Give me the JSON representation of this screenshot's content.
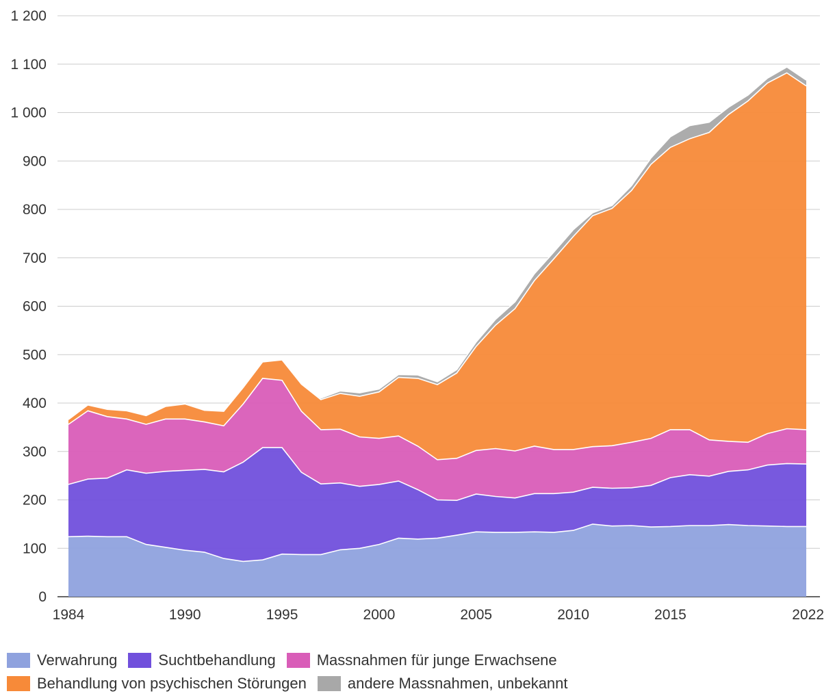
{
  "chart_data": {
    "type": "area",
    "stacked": true,
    "x": [
      1984,
      1985,
      1986,
      1987,
      1988,
      1989,
      1990,
      1991,
      1992,
      1993,
      1994,
      1995,
      1996,
      1997,
      1998,
      1999,
      2000,
      2001,
      2002,
      2003,
      2004,
      2005,
      2006,
      2007,
      2008,
      2009,
      2010,
      2011,
      2012,
      2013,
      2014,
      2015,
      2016,
      2017,
      2018,
      2019,
      2020,
      2021,
      2022
    ],
    "x_ticks": [
      "1984",
      "1990",
      "1995",
      "2000",
      "2005",
      "2010",
      "2015",
      "2022"
    ],
    "y_ticks": [
      "0",
      "100",
      "200",
      "300",
      "400",
      "500",
      "600",
      "700",
      "800",
      "900",
      "1 000",
      "1 100",
      "1 200"
    ],
    "ylim": [
      0,
      1200
    ],
    "grid": true,
    "legend_position": "bottom",
    "series": [
      {
        "name": "Verwahrung",
        "color": "#8fa2de",
        "values": [
          124,
          125,
          124,
          124,
          108,
          102,
          96,
          92,
          79,
          73,
          76,
          88,
          87,
          87,
          97,
          100,
          108,
          121,
          119,
          121,
          127,
          134,
          133,
          133,
          134,
          133,
          137,
          150,
          146,
          147,
          144,
          145,
          147,
          147,
          149,
          147,
          146,
          145,
          145
        ]
      },
      {
        "name": "Suchtbehandlung",
        "color": "#7150dc",
        "values": [
          108,
          118,
          121,
          138,
          147,
          157,
          165,
          171,
          179,
          205,
          232,
          220,
          170,
          146,
          138,
          128,
          124,
          118,
          102,
          79,
          72,
          78,
          74,
          71,
          79,
          80,
          79,
          76,
          78,
          78,
          86,
          101,
          105,
          102,
          110,
          115,
          126,
          130,
          129
        ]
      },
      {
        "name": "Massnahmen für junge Erwachsene",
        "color": "#d95db8",
        "values": [
          124,
          141,
          127,
          105,
          101,
          108,
          106,
          98,
          95,
          120,
          143,
          139,
          126,
          112,
          111,
          102,
          95,
          93,
          90,
          83,
          87,
          90,
          99,
          97,
          98,
          91,
          88,
          84,
          88,
          94,
          97,
          99,
          93,
          75,
          62,
          57,
          65,
          72,
          71
        ]
      },
      {
        "name": "Behandlung von psychischen Störungen",
        "color": "#f78a39",
        "values": [
          10,
          12,
          15,
          17,
          18,
          26,
          31,
          24,
          30,
          34,
          34,
          42,
          56,
          62,
          74,
          84,
          96,
          121,
          140,
          155,
          176,
          215,
          255,
          294,
          342,
          394,
          440,
          477,
          490,
          520,
          566,
          583,
          601,
          635,
          675,
          705,
          724,
          735,
          710
        ]
      },
      {
        "name": "andere Massnahmen, unbekannt",
        "color": "#a8a8a8",
        "values": [
          1,
          1,
          1,
          1,
          1,
          1,
          1,
          1,
          1,
          1,
          1,
          1,
          1,
          3,
          5,
          7,
          6,
          6,
          7,
          6,
          7,
          9,
          12,
          14,
          14,
          14,
          14,
          6,
          6,
          10,
          13,
          22,
          27,
          21,
          15,
          12,
          10,
          12,
          12
        ]
      }
    ]
  }
}
